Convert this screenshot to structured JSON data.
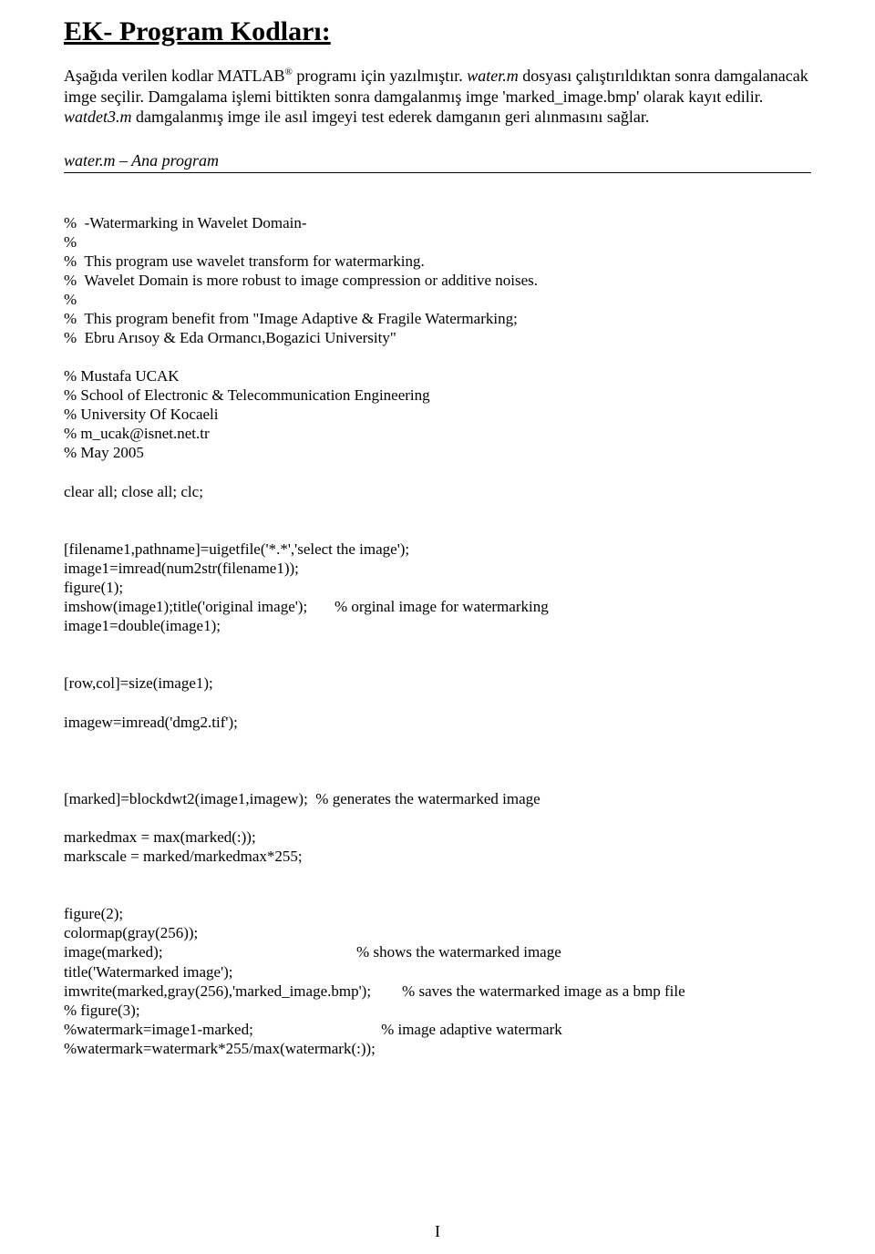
{
  "heading": "EK- Program Kodları:",
  "intro": {
    "line1_pre": "Aşağıda verilen kodlar MATLAB",
    "line1_sup": "®",
    "line1_post": " programı için yazılmıştır. ",
    "line1_italic": "water.m",
    "line1_end": " dosyası çalıştırıldıktan sonra damgalanacak imge seçilir. Damgalama işlemi bittikten sonra damgalanmış imge 'marked_image.bmp' olarak kayıt edilir. ",
    "line2_italic": "watdet3.m",
    "line2_end": " damgalanmış imge ile asıl imgeyi test ederek damganın geri alınmasını sağlar."
  },
  "section_title": "water.m – Ana program",
  "code": "%  -Watermarking in Wavelet Domain-\n%\n%  This program use wavelet transform for watermarking.\n%  Wavelet Domain is more robust to image compression or additive noises.\n%\n%  This program benefit from \"Image Adaptive & Fragile Watermarking;\n%  Ebru Arısoy & Eda Ormancı,Bogazici University\"\n\n% Mustafa UCAK\n% School of Electronic & Telecommunication Engineering\n% University Of Kocaeli\n% m_ucak@isnet.net.tr\n% May 2005\n\nclear all; close all; clc;\n\n\n[filename1,pathname]=uigetfile('*.*','select the image');\nimage1=imread(num2str(filename1));\nfigure(1);\nimshow(image1);title('original image');       % orginal image for watermarking\nimage1=double(image1);\n\n\n[row,col]=size(image1);\n\nimagew=imread('dmg2.tif');\n\n\n\n[marked]=blockdwt2(image1,imagew);  % generates the watermarked image\n\nmarkedmax = max(marked(:));\nmarkscale = marked/markedmax*255;\n\n\nfigure(2);\ncolormap(gray(256));\nimage(marked);                                                  % shows the watermarked image\ntitle('Watermarked image');\nimwrite(marked,gray(256),'marked_image.bmp');        % saves the watermarked image as a bmp file\n% figure(3);\n%watermark=image1-marked;                                 % image adaptive watermark\n%watermark=watermark*255/max(watermark(:));",
  "page_number": "I"
}
